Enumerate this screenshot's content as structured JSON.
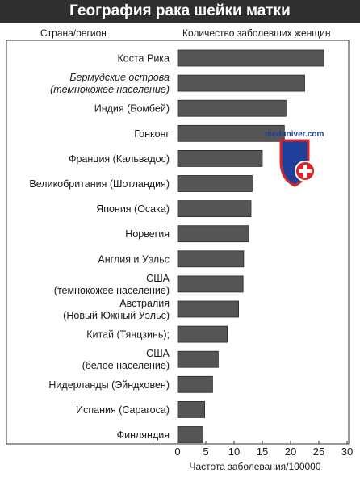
{
  "page_title": "География рака шейки матки",
  "watermark": {
    "text": "meduniver.com",
    "colors": {
      "red": "#d4262b",
      "blue": "#1f3f9a",
      "white": "#ffffff"
    }
  },
  "chart_data": {
    "type": "bar",
    "orientation": "horizontal",
    "category_header": "Страна/регион",
    "value_header": "Количество заболевших женщин",
    "xlabel": "Частота заболевания/100000",
    "xlim": [
      0,
      30
    ],
    "xticks": [
      0,
      5,
      10,
      15,
      20,
      25,
      30
    ],
    "grid": false,
    "bar_color": "#555555",
    "categories": [
      {
        "lines": [
          "Коста Рика"
        ],
        "italic": false
      },
      {
        "lines": [
          "Бермудские острова",
          "(темнокожее население)"
        ],
        "italic": true
      },
      {
        "lines": [
          "Индия (Бомбей)"
        ],
        "italic": false
      },
      {
        "lines": [
          "Гонконг"
        ],
        "italic": false
      },
      {
        "lines": [
          "Франция (Кальвадос)"
        ],
        "italic": false
      },
      {
        "lines": [
          "Великобритания (Шотландия)"
        ],
        "italic": false
      },
      {
        "lines": [
          "Япония (Осака)"
        ],
        "italic": false
      },
      {
        "lines": [
          "Норвегия"
        ],
        "italic": false
      },
      {
        "lines": [
          "Англия и Уэльс"
        ],
        "italic": false
      },
      {
        "lines": [
          "США",
          "(темнокожее население)"
        ],
        "italic": false
      },
      {
        "lines": [
          "Австралия",
          "(Новый Южный Уэльс)"
        ],
        "italic": false
      },
      {
        "lines": [
          "Китай (Тянцзинь);"
        ],
        "italic": false
      },
      {
        "lines": [
          "США",
          "(белое население)"
        ],
        "italic": false
      },
      {
        "lines": [
          "Нидерланды (Эйндховен)"
        ],
        "italic": false
      },
      {
        "lines": [
          "Испания (Сарагоса)"
        ],
        "italic": false
      },
      {
        "lines": [
          "Финляндия"
        ],
        "italic": false
      }
    ],
    "values": [
      25.9,
      22.5,
      19.2,
      18.9,
      15.0,
      13.2,
      13.0,
      12.6,
      11.7,
      11.6,
      10.8,
      8.8,
      7.2,
      6.2,
      4.8,
      4.5
    ]
  }
}
